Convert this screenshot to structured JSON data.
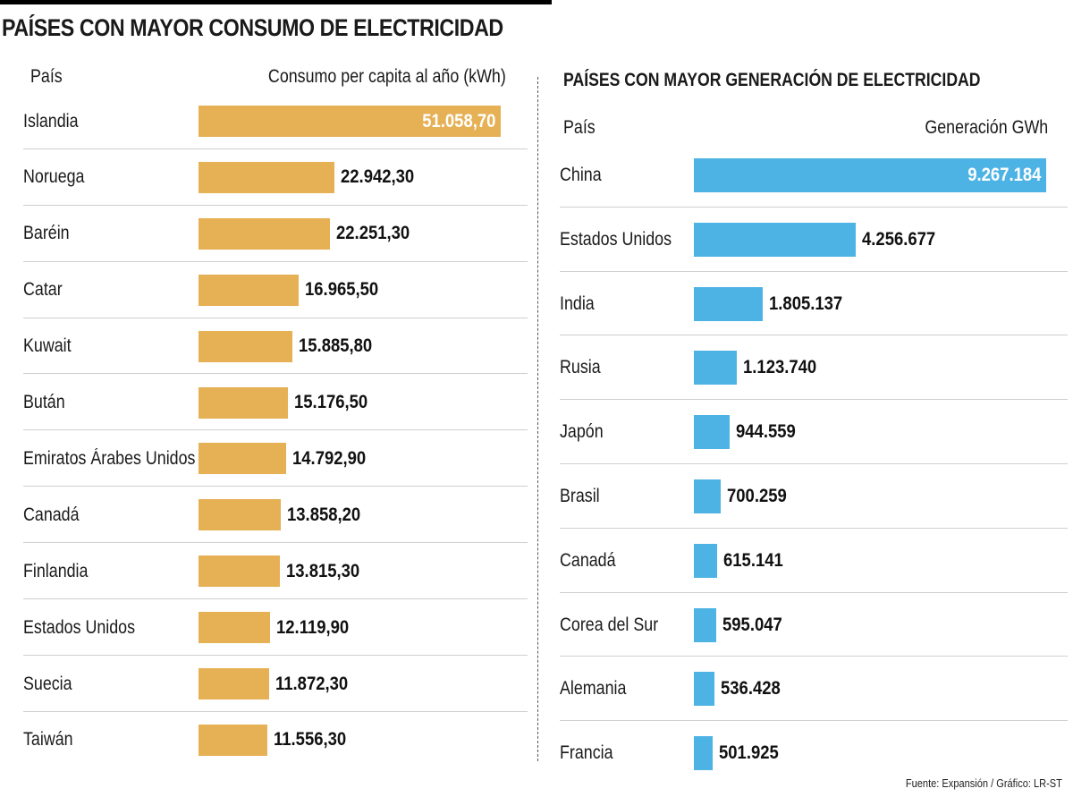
{
  "header": {
    "title": "PAÍSES CON MAYOR CONSUMO DE ELECTRICIDAD"
  },
  "left_panel": {
    "col_country": "País",
    "col_value": "Consumo per capita al año (kWh)",
    "color": "#E6B054"
  },
  "right_panel": {
    "title": "PAÍSES CON MAYOR GENERACIÓN DE ELECTRICIDAD",
    "col_country": "País",
    "col_value": "Generación GWh",
    "color": "#4DB3E4"
  },
  "footer": {
    "source": "Fuente: Expansión / Gráfico: LR-ST"
  },
  "chart_data": [
    {
      "type": "bar",
      "orientation": "horizontal",
      "title": "PAÍSES CON MAYOR CONSUMO DE ELECTRICIDAD",
      "xlabel": "Consumo per capita al año (kWh)",
      "ylabel": "País",
      "categories": [
        "Islandia",
        "Noruega",
        "Baréin",
        "Catar",
        "Kuwait",
        "Bután",
        "Emiratos Árabes Unidos",
        "Canadá",
        "Finlandia",
        "Estados Unidos",
        "Suecia",
        "Taiwán"
      ],
      "values": [
        51058.7,
        22942.3,
        22251.3,
        16965.5,
        15885.8,
        15176.5,
        14792.9,
        13858.2,
        13815.3,
        12119.9,
        11872.3,
        11556.3
      ],
      "labels": [
        "51.058,70",
        "22.942,30",
        "22.251,30",
        "16.965,50",
        "15.885,80",
        "15.176,50",
        "14.792,90",
        "13.858,20",
        "13.815,30",
        "12.119,90",
        "11.872,30",
        "11.556,30"
      ],
      "grid": false
    },
    {
      "type": "bar",
      "orientation": "horizontal",
      "title": "PAÍSES CON MAYOR GENERACIÓN DE ELECTRICIDAD",
      "xlabel": "Generación GWh",
      "ylabel": "País",
      "categories": [
        "China",
        "Estados Unidos",
        "India",
        "Rusia",
        "Japón",
        "Brasil",
        "Canadá",
        "Corea del Sur",
        "Alemania",
        "Francia"
      ],
      "values": [
        9267184,
        4256677,
        1805137,
        1123740,
        944559,
        700259,
        615141,
        595047,
        536428,
        501925
      ],
      "labels": [
        "9.267.184",
        "4.256.677",
        "1.805.137",
        "1.123.740",
        "944.559",
        "700.259",
        "615.141",
        "595.047",
        "536.428",
        "501.925"
      ],
      "grid": false
    }
  ]
}
